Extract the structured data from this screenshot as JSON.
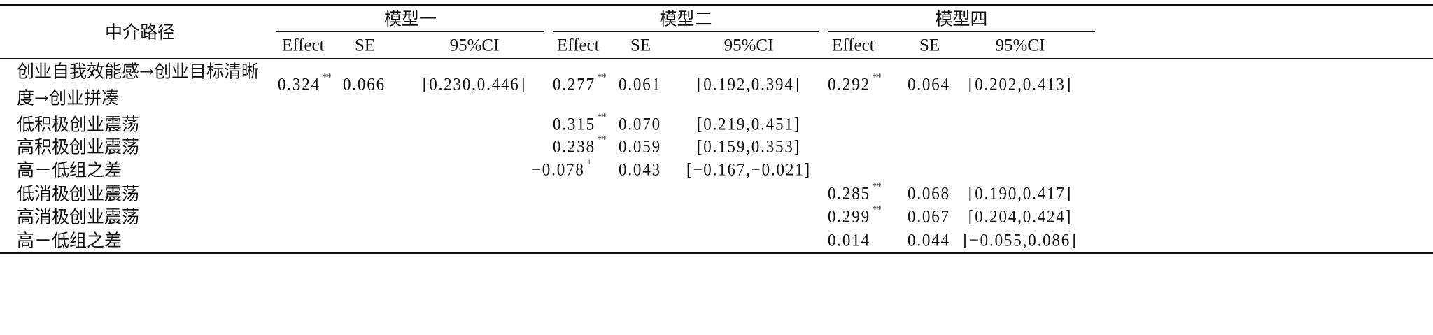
{
  "table": {
    "row_header": "中介路径",
    "models": [
      {
        "name": "模型一",
        "columns": [
          "Effect",
          "SE",
          "95%CI"
        ]
      },
      {
        "name": "模型二",
        "columns": [
          "Effect",
          "SE",
          "95%CI"
        ]
      },
      {
        "name": "模型四",
        "columns": [
          "Effect",
          "SE",
          "95%CI"
        ]
      }
    ],
    "rows": [
      {
        "label": [
          "创业自我效能感→创业目标清晰",
          "度→创业拼凑"
        ],
        "values": [
          {
            "effect": "0.324",
            "sig": "**",
            "se": "0.066",
            "ci": "[0.230,0.446]"
          },
          {
            "effect": "0.277",
            "sig": "**",
            "se": "0.061",
            "ci": "[0.192,0.394]"
          },
          {
            "effect": "0.292",
            "sig": "**",
            "se": "0.064",
            "ci": "[0.202,0.413]"
          }
        ]
      },
      {
        "label": [
          "低积极创业震荡"
        ],
        "values": [
          null,
          {
            "effect": "0.315",
            "sig": "**",
            "se": "0.070",
            "ci": "[0.219,0.451]"
          },
          null
        ]
      },
      {
        "label": [
          "高积极创业震荡"
        ],
        "values": [
          null,
          {
            "effect": "0.238",
            "sig": "**",
            "se": "0.059",
            "ci": "[0.159,0.353]"
          },
          null
        ]
      },
      {
        "label": [
          "高－低组之差"
        ],
        "values": [
          null,
          {
            "effect": "−0.078",
            "sig": "+",
            "se": "0.043",
            "ci": "[−0.167,−0.021]"
          },
          null
        ]
      },
      {
        "label": [
          "低消极创业震荡"
        ],
        "values": [
          null,
          null,
          {
            "effect": "0.285",
            "sig": "**",
            "se": "0.068",
            "ci": "[0.190,0.417]"
          }
        ]
      },
      {
        "label": [
          "高消极创业震荡"
        ],
        "values": [
          null,
          null,
          {
            "effect": "0.299",
            "sig": "**",
            "se": "0.067",
            "ci": "[0.204,0.424]"
          }
        ]
      },
      {
        "label": [
          "高－低组之差"
        ],
        "values": [
          null,
          null,
          {
            "effect": "0.014",
            "sig": "",
            "se": "0.044",
            "ci": "[−0.055,0.086]"
          }
        ]
      }
    ]
  }
}
